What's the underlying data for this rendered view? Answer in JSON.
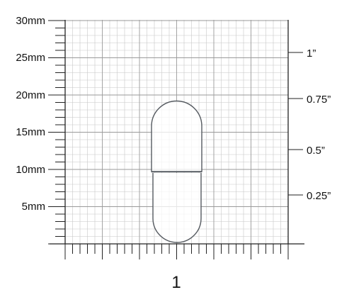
{
  "ruler": {
    "mm_labels": [
      "30mm",
      "25mm",
      "20mm",
      "15mm",
      "10mm",
      "5mm"
    ],
    "inch_labels": [
      "1”",
      "0.75”",
      "0.5”",
      "0.25”"
    ]
  },
  "capsule": {
    "size_label": "1",
    "outline_color": "#555a60"
  },
  "colors": {
    "grid_minor": "#c8c8c8",
    "grid_major": "#9a9a9a",
    "ruler": "#222222"
  }
}
